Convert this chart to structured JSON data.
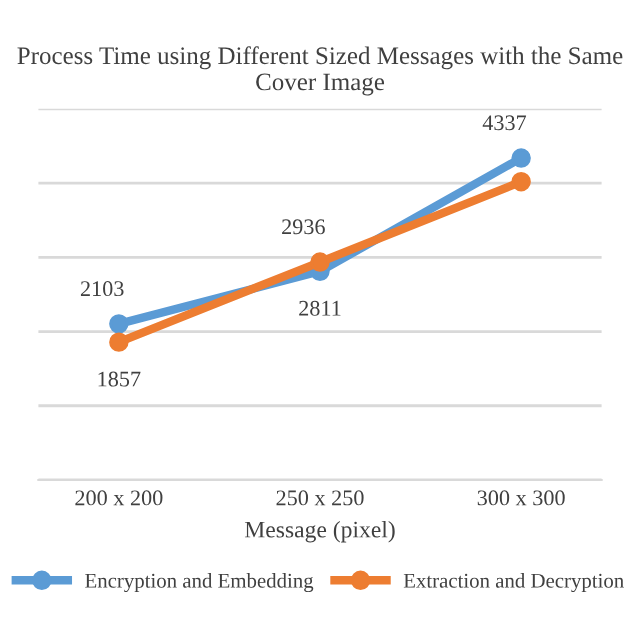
{
  "chart_data": {
    "type": "line",
    "title": "Process Time using Different Sized Messages with the Same Cover Image",
    "xlabel": "Message (pixel)",
    "categories": [
      "200 x 200",
      "250 x 250",
      "300 x 300"
    ],
    "series": [
      {
        "name": "Encryption and Embedding",
        "color": "#5b9bd5",
        "values": [
          2103,
          2811,
          4337
        ],
        "value_labels": [
          "2103",
          "2811",
          "4337"
        ]
      },
      {
        "name": "Extraction and Decryption",
        "color": "#ed7d31",
        "values": [
          1857,
          2936,
          4018
        ],
        "value_labels": [
          "1857",
          "2936",
          null
        ]
      }
    ],
    "ylim": [
      0,
      5000
    ],
    "yticks": [
      {
        "value": 0,
        "label": null
      },
      {
        "value": 1000,
        "label": null
      },
      {
        "value": 2000,
        "label": null
      },
      {
        "value": 3000,
        "label": null
      },
      {
        "value": 4000,
        "label": null
      },
      {
        "value": 5000,
        "label": null
      }
    ],
    "tick_labels": "x",
    "grid": "y",
    "legend": "bottom",
    "marker": "circle",
    "line_style": "solid"
  }
}
